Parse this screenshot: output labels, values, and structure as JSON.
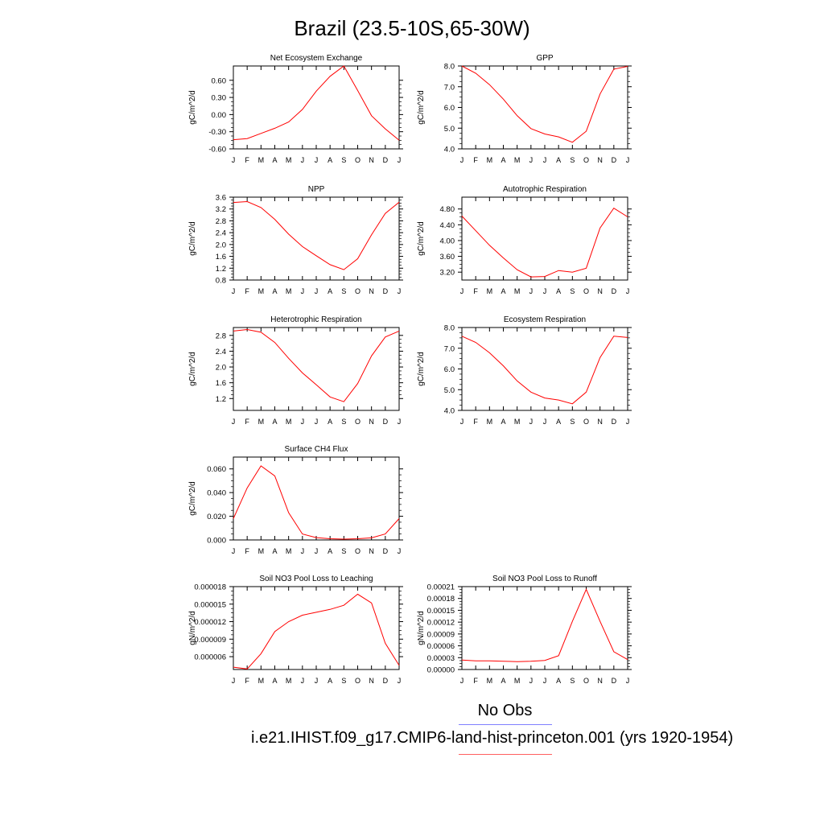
{
  "page": {
    "title": "Brazil (23.5-10S,65-30W)"
  },
  "legend": {
    "obs_label": "No Obs",
    "obs_color": "#7f7fff",
    "run_label": "i.e21.IHIST.f09_g17.CMIP6-land-hist-princeton.001 (yrs 1920-1954)",
    "run_color": "#ff0000"
  },
  "chart_data": [
    {
      "type": "line",
      "title": "Net Ecosystem Exchange",
      "ylabel": "gC/m^2/d",
      "x": [
        "J",
        "F",
        "M",
        "A",
        "M",
        "J",
        "J",
        "A",
        "S",
        "O",
        "N",
        "D",
        "J"
      ],
      "ylim": [
        -0.6,
        0.85
      ],
      "yticks": [
        -0.6,
        -0.3,
        0.0,
        0.3,
        0.6
      ],
      "ytick_labels": [
        "-0.60",
        "-0.30",
        "0.00",
        "0.30",
        "0.60"
      ],
      "series": [
        {
          "values": [
            -0.44,
            -0.42,
            -0.33,
            -0.24,
            -0.13,
            0.09,
            0.41,
            0.67,
            0.85,
            0.42,
            -0.02,
            -0.25,
            -0.45
          ]
        }
      ]
    },
    {
      "type": "line",
      "title": "GPP",
      "ylabel": "gC/m^2/d",
      "x": [
        "J",
        "F",
        "M",
        "A",
        "M",
        "J",
        "J",
        "A",
        "S",
        "O",
        "N",
        "D",
        "J"
      ],
      "ylim": [
        4.0,
        8.0
      ],
      "yticks": [
        4,
        5,
        6,
        7,
        8
      ],
      "ytick_labels": [
        "4.0",
        "5.0",
        "6.0",
        "7.0",
        "8.0"
      ],
      "series": [
        {
          "values": [
            8.0,
            7.65,
            7.1,
            6.4,
            5.6,
            4.98,
            4.72,
            4.58,
            4.32,
            4.85,
            6.65,
            7.85,
            7.98
          ]
        }
      ]
    },
    {
      "type": "line",
      "title": "NPP",
      "ylabel": "gC/m^2/d",
      "x": [
        "J",
        "F",
        "M",
        "A",
        "M",
        "J",
        "J",
        "A",
        "S",
        "O",
        "N",
        "D",
        "J"
      ],
      "ylim": [
        0.8,
        3.6
      ],
      "yticks": [
        0.8,
        1.2,
        1.6,
        2.0,
        2.4,
        2.8,
        3.2,
        3.6
      ],
      "ytick_labels": [
        "0.8",
        "1.2",
        "1.6",
        "2.0",
        "2.4",
        "2.8",
        "3.2",
        "3.6"
      ],
      "series": [
        {
          "values": [
            3.42,
            3.45,
            3.25,
            2.85,
            2.35,
            1.93,
            1.62,
            1.32,
            1.15,
            1.52,
            2.33,
            3.05,
            3.43
          ]
        }
      ]
    },
    {
      "type": "line",
      "title": "Autotrophic Respiration",
      "ylabel": "gC/m^2/d",
      "x": [
        "J",
        "F",
        "M",
        "A",
        "M",
        "J",
        "J",
        "A",
        "S",
        "O",
        "N",
        "D",
        "J"
      ],
      "ylim": [
        3.0,
        5.1
      ],
      "yticks": [
        3.2,
        3.6,
        4.0,
        4.4,
        4.8
      ],
      "ytick_labels": [
        "3.20",
        "3.60",
        "4.00",
        "4.40",
        "4.80"
      ],
      "series": [
        {
          "values": [
            4.62,
            4.25,
            3.88,
            3.56,
            3.26,
            3.08,
            3.09,
            3.24,
            3.2,
            3.3,
            4.32,
            4.82,
            4.6
          ]
        }
      ]
    },
    {
      "type": "line",
      "title": "Heterotrophic Respiration",
      "ylabel": "gC/m^2/d",
      "x": [
        "J",
        "F",
        "M",
        "A",
        "M",
        "J",
        "J",
        "A",
        "S",
        "O",
        "N",
        "D",
        "J"
      ],
      "ylim": [
        0.9,
        3.0
      ],
      "yticks": [
        1.2,
        1.6,
        2.0,
        2.4,
        2.8
      ],
      "ytick_labels": [
        "1.2",
        "1.6",
        "2.0",
        "2.4",
        "2.8"
      ],
      "series": [
        {
          "values": [
            2.91,
            2.95,
            2.88,
            2.62,
            2.22,
            1.85,
            1.55,
            1.24,
            1.12,
            1.58,
            2.28,
            2.76,
            2.91
          ]
        }
      ]
    },
    {
      "type": "line",
      "title": "Ecosystem Respiration",
      "ylabel": "gC/m^2/d",
      "x": [
        "J",
        "F",
        "M",
        "A",
        "M",
        "J",
        "J",
        "A",
        "S",
        "O",
        "N",
        "D",
        "J"
      ],
      "ylim": [
        4.0,
        8.0
      ],
      "yticks": [
        4,
        5,
        6,
        7,
        8
      ],
      "ytick_labels": [
        "4.0",
        "5.0",
        "6.0",
        "7.0",
        "8.0"
      ],
      "series": [
        {
          "values": [
            7.58,
            7.28,
            6.78,
            6.15,
            5.42,
            4.88,
            4.6,
            4.5,
            4.32,
            4.88,
            6.55,
            7.58,
            7.52
          ]
        }
      ]
    },
    {
      "type": "line",
      "title": "Surface CH4 Flux",
      "ylabel": "gC/m^2/d",
      "x": [
        "J",
        "F",
        "M",
        "A",
        "M",
        "J",
        "J",
        "A",
        "S",
        "O",
        "N",
        "D",
        "J"
      ],
      "ylim": [
        0.0,
        0.07
      ],
      "yticks": [
        0.0,
        0.02,
        0.04,
        0.06
      ],
      "ytick_labels": [
        "0.000",
        "0.020",
        "0.040",
        "0.060"
      ],
      "series": [
        {
          "values": [
            0.018,
            0.044,
            0.0625,
            0.054,
            0.023,
            0.005,
            0.002,
            0.001,
            0.0007,
            0.001,
            0.0018,
            0.005,
            0.018
          ]
        }
      ]
    },
    {
      "type": "line",
      "title": "Soil NO3 Pool Loss to Leaching",
      "ylabel": "gN/m^2/d",
      "x": [
        "J",
        "F",
        "M",
        "A",
        "M",
        "J",
        "J",
        "A",
        "S",
        "O",
        "N",
        "D",
        "J"
      ],
      "ylim": [
        3.8e-06,
        1.8e-05
      ],
      "yticks": [
        6e-06,
        9e-06,
        1.2e-05,
        1.5e-05,
        1.8e-05
      ],
      "ytick_labels": [
        "0.000006",
        "0.000009",
        "0.000012",
        "0.000015",
        "0.000018"
      ],
      "series": [
        {
          "values": [
            4.2e-06,
            3.9e-06,
            6.5e-06,
            1.03e-05,
            1.2e-05,
            1.31e-05,
            1.36e-05,
            1.41e-05,
            1.48e-05,
            1.67e-05,
            1.52e-05,
            8.3e-06,
            4.5e-06
          ]
        }
      ]
    },
    {
      "type": "line",
      "title": "Soil NO3 Pool Loss to Runoff",
      "ylabel": "gN/m^2/d",
      "x": [
        "J",
        "F",
        "M",
        "A",
        "M",
        "J",
        "J",
        "A",
        "S",
        "O",
        "N",
        "D",
        "J"
      ],
      "ylim": [
        0.0,
        0.00021
      ],
      "yticks": [
        0.0,
        3e-05,
        6e-05,
        9e-05,
        0.00012,
        0.00015,
        0.00018,
        0.00021
      ],
      "ytick_labels": [
        "0.00000",
        "0.00003",
        "0.00006",
        "0.00009",
        "0.00012",
        "0.00015",
        "0.00018",
        "0.00021"
      ],
      "series": [
        {
          "values": [
            2.4e-05,
            2.2e-05,
            2.2e-05,
            2.1e-05,
            2e-05,
            2.1e-05,
            2.3e-05,
            3.5e-05,
            0.000122,
            0.000203,
            0.000122,
            4.5e-05,
            2.5e-05
          ]
        }
      ]
    }
  ]
}
